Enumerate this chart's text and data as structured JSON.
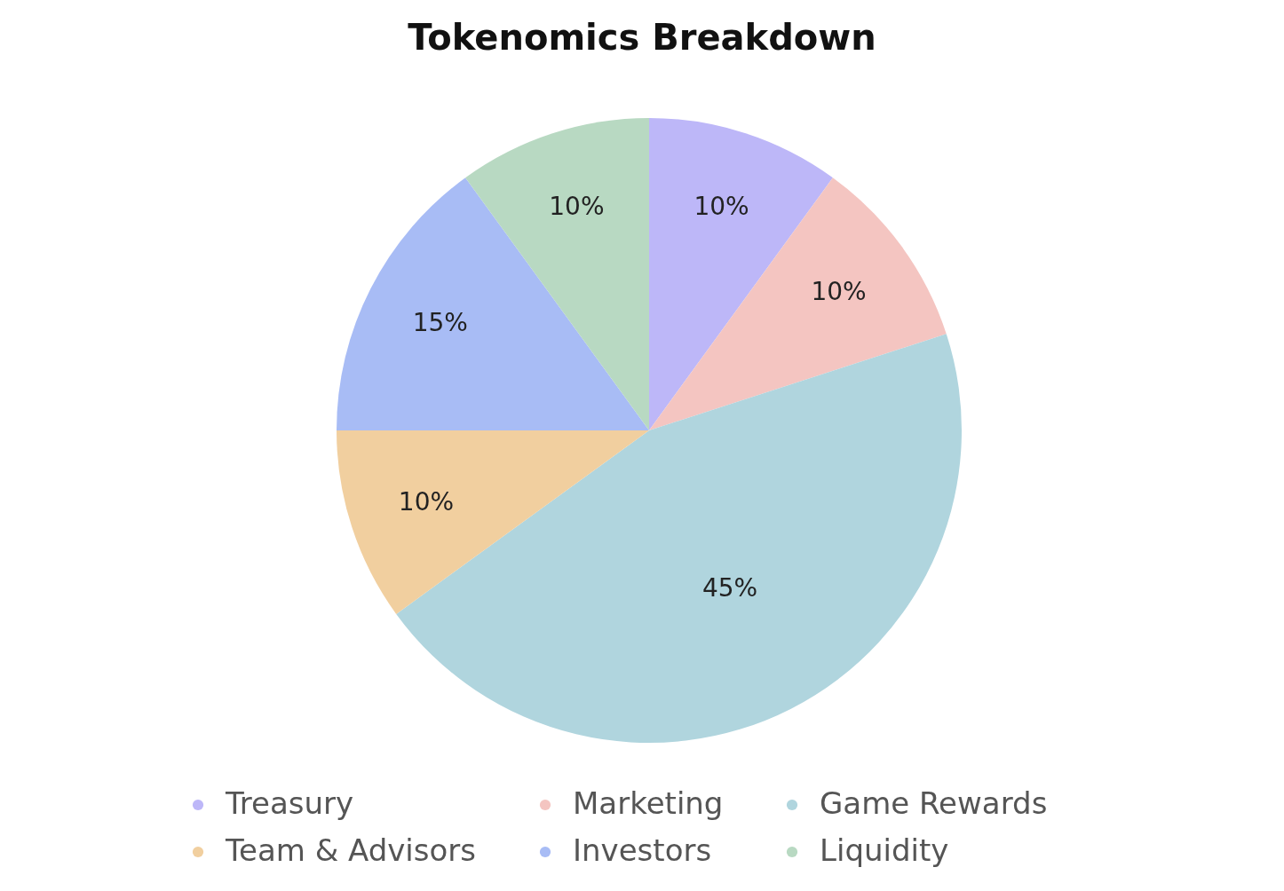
{
  "chart_data": {
    "type": "pie",
    "title": "Tokenomics Breakdown",
    "categories": [
      "Treasury",
      "Marketing",
      "Game Rewards",
      "Team & Advisors",
      "Investors",
      "Liquidity"
    ],
    "values": [
      10,
      10,
      45,
      10,
      15,
      10
    ],
    "colors": [
      "#bdb7f8",
      "#f4c5c1",
      "#b0d5de",
      "#f1cf9f",
      "#a8bcf5",
      "#b8d9c2"
    ],
    "value_labels": [
      "10%",
      "10%",
      "45%",
      "10%",
      "15%",
      "10%"
    ],
    "legend": "bottom"
  }
}
